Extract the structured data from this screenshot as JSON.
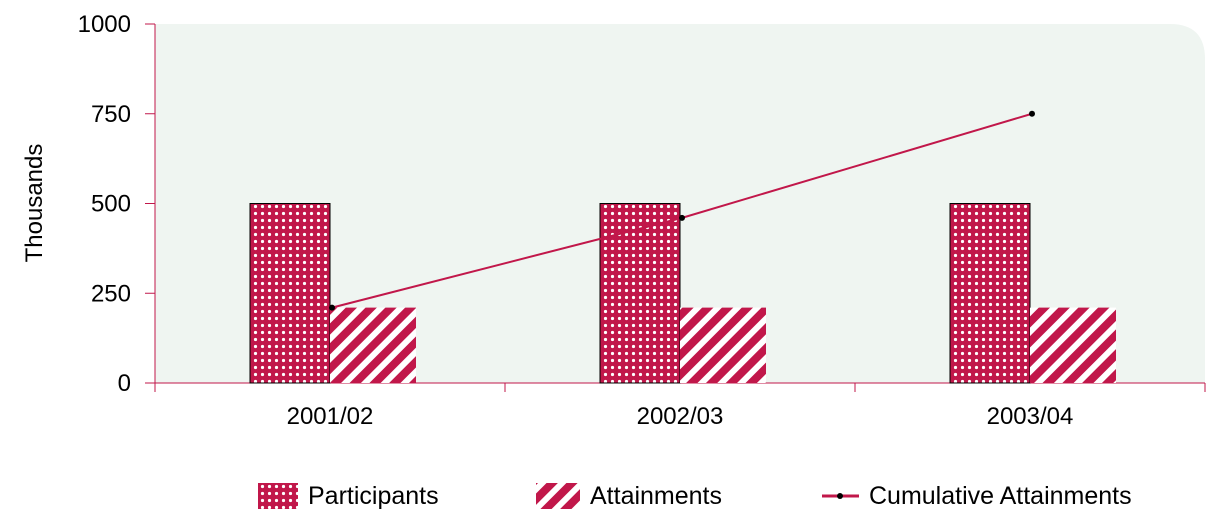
{
  "chart_data": {
    "type": "bar",
    "title": "",
    "xlabel": "",
    "ylabel": "Thousands",
    "ylim": [
      0,
      1000
    ],
    "yticks": [
      0,
      250,
      500,
      750,
      1000
    ],
    "categories": [
      "2001/02",
      "2002/03",
      "2003/04"
    ],
    "series": [
      {
        "name": "Participants",
        "kind": "bar",
        "pattern": "dots",
        "values": [
          500,
          500,
          500
        ]
      },
      {
        "name": "Attainments",
        "kind": "bar",
        "pattern": "diagonal-stripes",
        "values": [
          210,
          210,
          210
        ]
      },
      {
        "name": "Cumulative Attainments",
        "kind": "line",
        "values": [
          210,
          460,
          750
        ]
      }
    ],
    "legend_position": "bottom",
    "grid": false
  },
  "colors": {
    "plot_background": "#eff5f1",
    "accent": "#c1174a",
    "bar_background": "#ffffff",
    "line": "#c1174a",
    "marker": "#000000",
    "axis": "#c1174a"
  }
}
